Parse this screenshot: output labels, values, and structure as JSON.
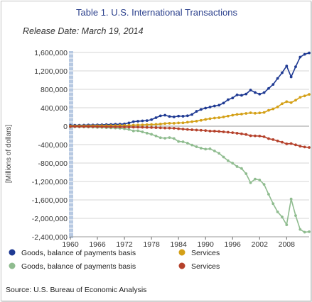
{
  "title": "Table 1. U.S. International Transactions",
  "subtitle": "Release Date: March 19, 2014",
  "source": "Source: U.S. Bureau of Economic Analysis",
  "chart_data": {
    "type": "line",
    "xlabel": "",
    "ylabel": "[Millions of dollars]",
    "xlim": [
      1960,
      2013
    ],
    "ylim": [
      -2400000,
      1600000
    ],
    "x_ticks": [
      1960,
      1966,
      1972,
      1978,
      1984,
      1990,
      1996,
      2002,
      2008
    ],
    "y_ticks": [
      1600000,
      1200000,
      800000,
      400000,
      0,
      -400000,
      -800000,
      -1200000,
      -1600000,
      -2000000,
      -2400000
    ],
    "y_tick_labels": [
      "1,600,000",
      "1,200,000",
      "800,000",
      "400,000",
      "0",
      "-400,000",
      "-800,000",
      "-1,200,000",
      "-1,600,000",
      "-2,000,000",
      "-2,400,000"
    ],
    "grid": "horizontal",
    "legend_position": "bottom",
    "x": [
      1960,
      1961,
      1962,
      1963,
      1964,
      1965,
      1966,
      1967,
      1968,
      1969,
      1970,
      1971,
      1972,
      1973,
      1974,
      1975,
      1976,
      1977,
      1978,
      1979,
      1980,
      1981,
      1982,
      1983,
      1984,
      1985,
      1986,
      1987,
      1988,
      1989,
      1990,
      1991,
      1992,
      1993,
      1994,
      1995,
      1996,
      1997,
      1998,
      1999,
      2000,
      2001,
      2002,
      2003,
      2004,
      2005,
      2006,
      2007,
      2008,
      2009,
      2010,
      2011,
      2012,
      2013
    ],
    "series": [
      {
        "name": "Goods, balance of payments basis",
        "color": "#1f3a93",
        "values": [
          20000,
          20000,
          21000,
          22000,
          26000,
          27000,
          29000,
          31000,
          34000,
          37000,
          42000,
          43000,
          49000,
          71000,
          98000,
          107000,
          115000,
          121000,
          142000,
          184000,
          225000,
          238000,
          211000,
          202000,
          219000,
          216000,
          226000,
          254000,
          322000,
          363000,
          392000,
          415000,
          438000,
          456000,
          502000,
          575000,
          612000,
          679000,
          670000,
          698000,
          784000,
          730000,
          696000,
          728000,
          819000,
          906000,
          1036000,
          1160000,
          1306000,
          1070000,
          1290000,
          1500000,
          1560000,
          1590000
        ]
      },
      {
        "name": "Services",
        "color": "#d4a017",
        "values": [
          6000,
          6000,
          7000,
          7000,
          8000,
          9000,
          10000,
          11000,
          12000,
          13000,
          14000,
          16000,
          17000,
          20000,
          23000,
          26000,
          29000,
          33000,
          37000,
          40000,
          47000,
          57000,
          64000,
          64000,
          71000,
          73000,
          86000,
          98000,
          110000,
          127000,
          147000,
          164000,
          177000,
          185000,
          200000,
          219000,
          239000,
          256000,
          263000,
          277000,
          290000,
          280000,
          288000,
          298000,
          344000,
          375000,
          418000,
          488000,
          533000,
          512000,
          563000,
          627000,
          657000,
          690000
        ]
      },
      {
        "name": "Goods, balance of payments basis",
        "color": "#8fbc8f",
        "values": [
          -15000,
          -14000,
          -16000,
          -17000,
          -19000,
          -22000,
          -26000,
          -27000,
          -33000,
          -36000,
          -40000,
          -45000,
          -56000,
          -71000,
          -103000,
          -98000,
          -124000,
          -151000,
          -176000,
          -212000,
          -250000,
          -261000,
          -248000,
          -268000,
          -332000,
          -338000,
          -368000,
          -410000,
          -447000,
          -477000,
          -498000,
          -491000,
          -537000,
          -589000,
          -669000,
          -749000,
          -803000,
          -876000,
          -918000,
          -1031000,
          -1226000,
          -1148000,
          -1167000,
          -1264000,
          -1477000,
          -1682000,
          -1860000,
          -1970000,
          -2140000,
          -1580000,
          -1940000,
          -2240000,
          -2300000,
          -2290000
        ]
      },
      {
        "name": "Services",
        "color": "#b5412b",
        "values": [
          -8000,
          -8000,
          -8000,
          -9000,
          -9000,
          -10000,
          -11000,
          -12000,
          -13000,
          -14000,
          -15000,
          -16000,
          -18000,
          -19000,
          -22000,
          -22000,
          -24000,
          -27000,
          -29000,
          -32000,
          -36000,
          -40000,
          -41000,
          -45000,
          -55000,
          -63000,
          -71000,
          -78000,
          -84000,
          -88000,
          -95000,
          -106000,
          -107000,
          -114000,
          -123000,
          -131000,
          -140000,
          -153000,
          -166000,
          -180000,
          -207000,
          -210000,
          -214000,
          -229000,
          -270000,
          -290000,
          -320000,
          -348000,
          -384000,
          -377000,
          -405000,
          -434000,
          -452000,
          -462000
        ]
      }
    ]
  }
}
